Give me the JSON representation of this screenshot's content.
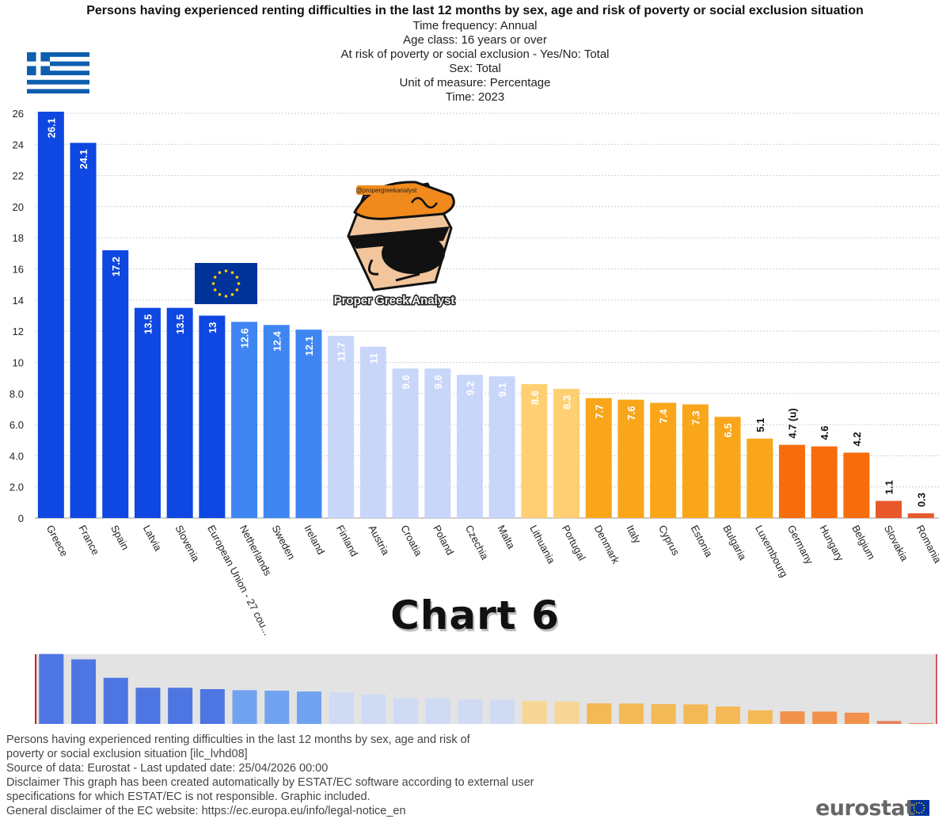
{
  "header": {
    "title": "Persons having experienced renting difficulties in the last 12 months by sex, age and risk of poverty or social exclusion situation",
    "meta_lines": [
      "Time frequency:  Annual",
      "Age class:  16 years or over",
      "At risk of poverty or social exclusion - Yes/No:  Total",
      "Sex:  Total",
      "Unit of measure:  Percentage",
      "Time:  2023"
    ]
  },
  "chart_data": {
    "type": "bar",
    "title": "Persons having experienced renting difficulties in the last 12 months by sex, age and risk of poverty or social exclusion situation",
    "categories": [
      "Greece",
      "France",
      "Spain",
      "Latvia",
      "Slovenia",
      "European Union - 27 cou...",
      "Netherlands",
      "Sweden",
      "Ireland",
      "Finland",
      "Austria",
      "Croatia",
      "Poland",
      "Czechia",
      "Malta",
      "Lithuania",
      "Portugal",
      "Denmark",
      "Italy",
      "Cyprus",
      "Estonia",
      "Bulgaria",
      "Luxembourg",
      "Germany",
      "Hungary",
      "Belgium",
      "Slovakia",
      "Romania"
    ],
    "values": [
      26.1,
      24.1,
      17.2,
      13.5,
      13.5,
      13,
      12.6,
      12.4,
      12.1,
      11.7,
      11,
      9.6,
      9.6,
      9.2,
      9.1,
      8.6,
      8.3,
      7.7,
      7.6,
      7.4,
      7.3,
      6.5,
      5.1,
      4.7,
      4.6,
      4.2,
      1.1,
      0.3
    ],
    "value_labels": [
      "26.1",
      "24.1",
      "17.2",
      "13.5",
      "13.5",
      "13",
      "12.6",
      "12.4",
      "12.1",
      "11.7",
      "11",
      "9.6",
      "9.6",
      "9.2",
      "9.1",
      "8.6",
      "8.3",
      "7.7",
      "7.6",
      "7.4",
      "7.3",
      "6.5",
      "5.1",
      "4.7 (u)",
      "4.6",
      "4.2",
      "1.1",
      "0.3"
    ],
    "colors": [
      "#0E47E1",
      "#0E47E1",
      "#0E47E1",
      "#0E47E1",
      "#0E47E1",
      "#0E47E1",
      "#3F86F3",
      "#3F86F3",
      "#3F86F3",
      "#C8D6FA",
      "#C8D6FA",
      "#C8D6FA",
      "#C8D6FA",
      "#C8D6FA",
      "#C8D6FA",
      "#FFD073",
      "#FFD073",
      "#FAA61A",
      "#FAA61A",
      "#FAA61A",
      "#FAA61A",
      "#FAA61A",
      "#FAA61A",
      "#F76D0C",
      "#F76D0C",
      "#F76D0C",
      "#E8582A",
      "#E8582A"
    ],
    "yticks": [
      "0",
      "2.0",
      "4.0",
      "6.0",
      "8.0",
      "10",
      "12",
      "14",
      "16",
      "18",
      "20",
      "22",
      "24",
      "26"
    ],
    "ylim": [
      0,
      26
    ],
    "grid": true
  },
  "watermark": {
    "text": "Proper Greek Analyst",
    "handle": "@propergreekanalyst"
  },
  "chart_label": "Chart 6",
  "footer": {
    "lines": [
      "Persons having experienced renting difficulties in the last 12 months by sex, age and risk of",
      "poverty or social exclusion situation [ilc_lvhd08]",
      "Source of data: Eurostat - Last updated date: 25/04/2026 00:00",
      "Disclaimer This graph has been created automatically by ESTAT/EC software according to external user",
      "specifications for which ESTAT/EC is not responsible. Graphic included.",
      "General disclaimer of the EC website: https://ec.europa.eu/info/legal-notice_en"
    ],
    "brand": "eurostat"
  },
  "colors": {
    "greek_flag_blue": "#0D5EAF",
    "eu_flag_blue": "#003399",
    "eu_star": "#FFCC00",
    "navigator_bg": "#E3E3E3",
    "navigator_edge": "#CC2222"
  },
  "icons": [
    "greek-flag-icon",
    "eu-flag-icon",
    "cartoon-mascot-icon",
    "eurostat-logo-icon"
  ]
}
